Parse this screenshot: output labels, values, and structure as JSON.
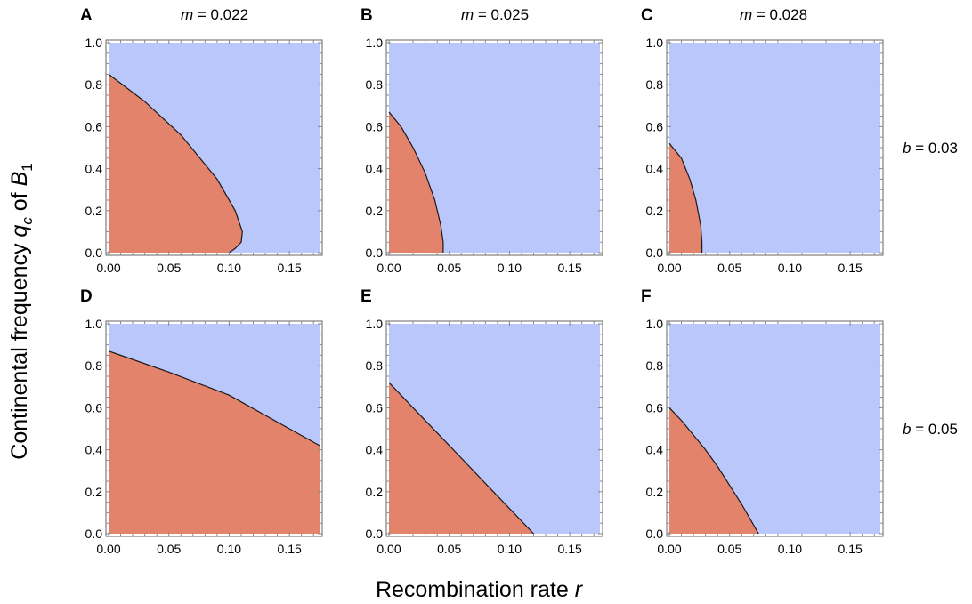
{
  "chart_data": {
    "type": "region",
    "x_axis": {
      "title": "Recombination rate",
      "title_var": "r",
      "ticks": [
        "0.00",
        "0.05",
        "0.10",
        "0.15"
      ],
      "tick_values": [
        0,
        0.05,
        0.1,
        0.15
      ],
      "range": [
        0,
        0.175
      ]
    },
    "y_axis": {
      "title": "Continental frequency",
      "title_var": "q",
      "title_sub": "c",
      "title_of": "of",
      "title_var2": "B",
      "title_sub2": "1",
      "ticks": [
        "0.0",
        "0.2",
        "0.4",
        "0.6",
        "0.8",
        "1.0"
      ],
      "tick_values": [
        0,
        0.2,
        0.4,
        0.6,
        0.8,
        1.0
      ],
      "range": [
        0,
        1
      ]
    },
    "colors": {
      "region_low": "#e3836b",
      "region_high": "#bac7fb",
      "boundary": "#1a1a1a"
    },
    "columns": [
      {
        "var": "m",
        "eq": " = ",
        "value": "0.022"
      },
      {
        "var": "m",
        "eq": " = ",
        "value": "0.025"
      },
      {
        "var": "m",
        "eq": " = ",
        "value": "0.028"
      }
    ],
    "rows": [
      {
        "var": "b",
        "eq": " = ",
        "value": "0.03"
      },
      {
        "var": "b",
        "eq": " = ",
        "value": "0.05"
      }
    ],
    "panels": [
      {
        "label": "A",
        "row": 0,
        "col": 0,
        "boundary": [
          [
            0,
            0.85
          ],
          [
            0.03,
            0.72
          ],
          [
            0.06,
            0.56
          ],
          [
            0.09,
            0.35
          ],
          [
            0.105,
            0.2
          ],
          [
            0.111,
            0.1
          ],
          [
            0.11,
            0.05
          ],
          [
            0.105,
            0.02
          ],
          [
            0.1,
            0.0
          ]
        ]
      },
      {
        "label": "B",
        "row": 0,
        "col": 1,
        "boundary": [
          [
            0,
            0.67
          ],
          [
            0.01,
            0.6
          ],
          [
            0.02,
            0.5
          ],
          [
            0.03,
            0.38
          ],
          [
            0.038,
            0.25
          ],
          [
            0.043,
            0.13
          ],
          [
            0.045,
            0.05
          ],
          [
            0.045,
            0.0
          ]
        ]
      },
      {
        "label": "C",
        "row": 0,
        "col": 2,
        "boundary": [
          [
            0,
            0.52
          ],
          [
            0.01,
            0.45
          ],
          [
            0.017,
            0.35
          ],
          [
            0.022,
            0.25
          ],
          [
            0.026,
            0.13
          ],
          [
            0.027,
            0.05
          ],
          [
            0.027,
            0.0
          ]
        ]
      },
      {
        "label": "D",
        "row": 1,
        "col": 0,
        "boundary": [
          [
            0,
            0.87
          ],
          [
            0.05,
            0.77
          ],
          [
            0.1,
            0.66
          ],
          [
            0.15,
            0.5
          ],
          [
            0.175,
            0.42
          ]
        ]
      },
      {
        "label": "E",
        "row": 1,
        "col": 1,
        "boundary": [
          [
            0,
            0.72
          ],
          [
            0.02,
            0.6
          ],
          [
            0.04,
            0.48
          ],
          [
            0.06,
            0.36
          ],
          [
            0.08,
            0.24
          ],
          [
            0.1,
            0.12
          ],
          [
            0.12,
            0.0
          ]
        ]
      },
      {
        "label": "F",
        "row": 1,
        "col": 2,
        "boundary": [
          [
            0,
            0.6
          ],
          [
            0.01,
            0.54
          ],
          [
            0.02,
            0.47
          ],
          [
            0.03,
            0.4
          ],
          [
            0.04,
            0.32
          ],
          [
            0.05,
            0.23
          ],
          [
            0.06,
            0.14
          ],
          [
            0.068,
            0.06
          ],
          [
            0.074,
            0.0
          ]
        ]
      }
    ]
  }
}
